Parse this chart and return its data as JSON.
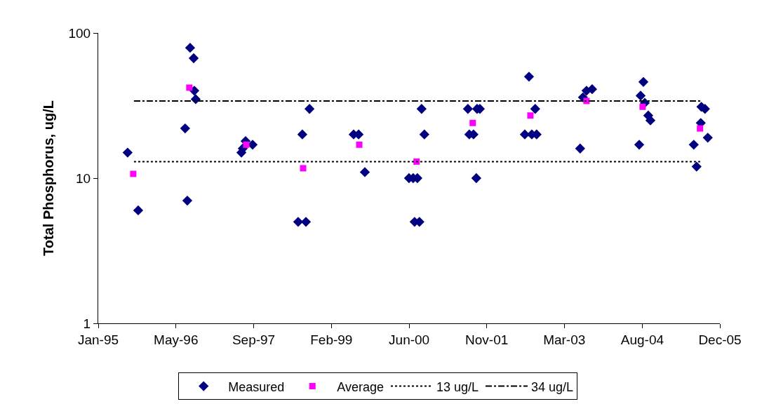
{
  "chart_data": {
    "type": "scatter",
    "ylabel": "Total Phosphorus, ug/L",
    "log": "y",
    "grid": false,
    "legend": "bottom",
    "xlim": [
      "1995-01-01",
      "2005-12-13"
    ],
    "xticks": [
      {
        "value": "1995-01-01",
        "label": "Jan-95"
      },
      {
        "value": "1996-05-15",
        "label": "May-96"
      },
      {
        "value": "1997-09-27",
        "label": "Sep-97"
      },
      {
        "value": "1999-02-09",
        "label": "Feb-99"
      },
      {
        "value": "2000-06-23",
        "label": "Jun-00"
      },
      {
        "value": "2001-11-04",
        "label": "Nov-01"
      },
      {
        "value": "2003-03-18",
        "label": "Mar-03"
      },
      {
        "value": "2004-08-01",
        "label": "Aug-04"
      },
      {
        "value": "2005-12-13",
        "label": "Dec-05"
      }
    ],
    "ylim": [
      1,
      100
    ],
    "yticks": [
      1,
      10,
      100
    ],
    "series": [
      {
        "name": "Measured",
        "marker": "diamond",
        "color": "#000080",
        "x": [
          "1995-07-09",
          "1995-09-15",
          "1996-07-13",
          "1996-07-27",
          "1996-08-14",
          "1996-09-06",
          "1996-09-10",
          "1996-09-19",
          "1997-07-10",
          "1997-07-19",
          "1997-08-06",
          "1997-09-20",
          "1998-07-10",
          "1998-08-29",
          "1998-08-06",
          "1998-09-21",
          "1999-07-02",
          "1999-08-03",
          "1999-09-12",
          "2000-06-22",
          "2000-07-19",
          "2000-08-15",
          "2000-07-28",
          "2000-08-28",
          "2000-09-11",
          "2000-09-29",
          "2001-07-06",
          "2001-07-15",
          "2001-08-11",
          "2001-08-29",
          "2001-09-03",
          "2001-09-21",
          "2002-07-07",
          "2002-08-03",
          "2002-08-21",
          "2002-09-12",
          "2002-09-21",
          "2003-06-28",
          "2003-07-16",
          "2003-08-08",
          "2003-09-13",
          "2004-07-12",
          "2004-07-21",
          "2004-08-08",
          "2004-08-17",
          "2004-09-08",
          "2004-09-22",
          "2005-06-28",
          "2005-07-16",
          "2005-08-12",
          "2005-08-16",
          "2005-09-08",
          "2005-09-26"
        ],
        "values": [
          15,
          6,
          22,
          7,
          79,
          67,
          40,
          35,
          15,
          16,
          18,
          17,
          5,
          5,
          20,
          30,
          20,
          20,
          11,
          10,
          10,
          10,
          5,
          5,
          30,
          20,
          30,
          20,
          20,
          10,
          30,
          30,
          20,
          50,
          20,
          30,
          20,
          16,
          36,
          40,
          41,
          17,
          37,
          46,
          33,
          27,
          25,
          17,
          12,
          24,
          31,
          30,
          19
        ]
      },
      {
        "name": "Average",
        "marker": "square",
        "color": "#ff00ff",
        "x": [
          "1995-08-14",
          "1996-08-09",
          "1997-08-10",
          "1998-08-11",
          "1999-08-07",
          "2000-08-10",
          "2001-08-06",
          "2002-08-12",
          "2003-08-08",
          "2004-08-03",
          "2005-08-07"
        ],
        "values": [
          10.7,
          42,
          17,
          11.7,
          17,
          13,
          24,
          27,
          34,
          31,
          22
        ]
      },
      {
        "name": "13 ug/L",
        "type": "line",
        "line_style": "dotted",
        "color": "#000000",
        "x": [
          "1995-08-19",
          "2005-08-12"
        ],
        "values": [
          13,
          13
        ]
      },
      {
        "name": "34 ug/L",
        "type": "line",
        "line_style": "dashdot",
        "color": "#000000",
        "x": [
          "1995-08-19",
          "2005-08-12"
        ],
        "values": [
          34,
          34
        ]
      }
    ]
  }
}
